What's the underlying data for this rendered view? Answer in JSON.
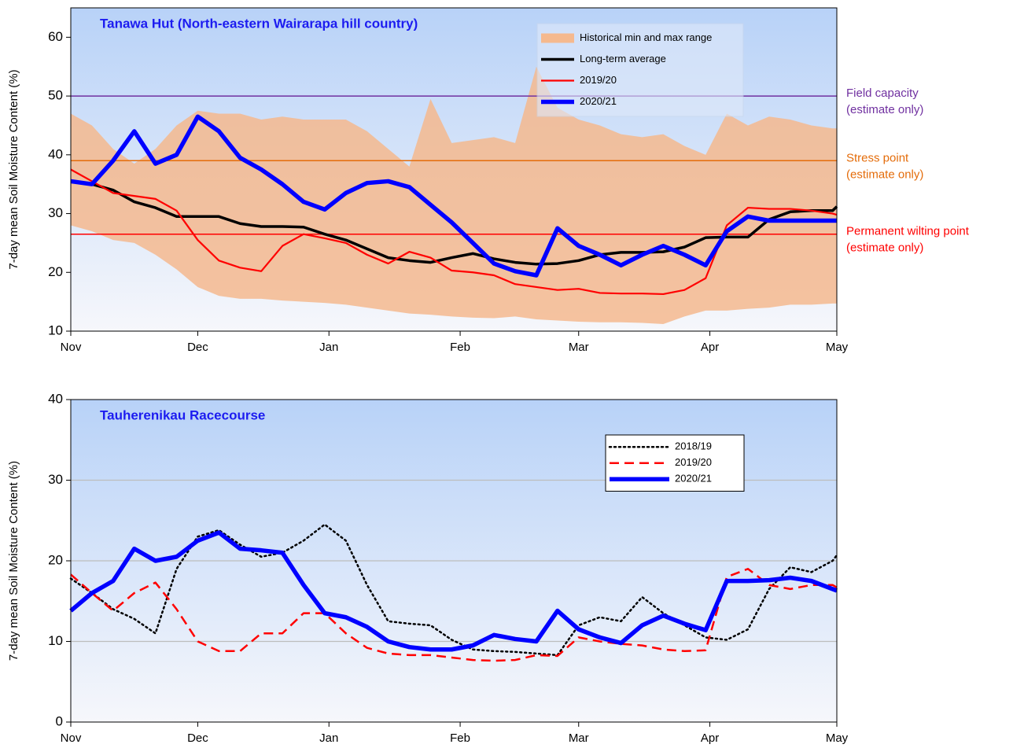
{
  "chart_data": [
    {
      "type": "line",
      "title": "Tanawa Hut (North-eastern Wairarapa hill country)",
      "y_label": "7-day mean Soil Moisture Content (%)",
      "xlim": [
        0,
        181
      ],
      "xticks": [
        {
          "value": 0,
          "label": "Nov"
        },
        {
          "value": 30,
          "label": "Dec"
        },
        {
          "value": 61,
          "label": "Jan"
        },
        {
          "value": 92,
          "label": "Feb"
        },
        {
          "value": 120,
          "label": "Mar"
        },
        {
          "value": 151,
          "label": "Apr"
        },
        {
          "value": 181,
          "label": "May"
        }
      ],
      "ylim": [
        10,
        65
      ],
      "yticks": [
        10,
        20,
        30,
        40,
        50,
        60
      ],
      "grid": false,
      "legend": "upper right",
      "x": [
        0,
        5,
        10,
        15,
        20,
        25,
        30,
        35,
        40,
        45,
        50,
        55,
        60,
        65,
        70,
        75,
        80,
        85,
        90,
        95,
        100,
        105,
        110,
        115,
        120,
        125,
        130,
        135,
        140,
        145,
        150,
        155,
        160,
        165,
        170,
        175,
        180,
        181
      ],
      "series": [
        {
          "name": "Historical min and max range",
          "kind": "band",
          "color": "#f5b98e",
          "max": [
            47,
            45,
            41,
            38.5,
            41,
            45,
            47.5,
            47,
            47,
            46,
            46.5,
            46,
            46,
            46,
            44,
            41,
            38,
            49.5,
            42,
            42.5,
            43,
            42,
            55,
            48,
            46,
            45,
            43.5,
            43,
            43.5,
            41.5,
            40,
            47,
            45,
            46.5,
            46,
            45,
            44.5,
            44.5
          ],
          "min": [
            28,
            27,
            25.5,
            25,
            23,
            20.5,
            17.5,
            16,
            15.5,
            15.5,
            15.2,
            15,
            14.8,
            14.5,
            14,
            13.5,
            13,
            12.8,
            12.5,
            12.3,
            12.2,
            12.5,
            12,
            11.8,
            11.6,
            11.5,
            11.5,
            11.4,
            11.2,
            12.5,
            13.5,
            13.5,
            13.8,
            14,
            14.5,
            14.5,
            14.7,
            14.7
          ]
        },
        {
          "name": "Long-term average",
          "color": "#000000",
          "width": 3.5,
          "dash": "solid",
          "values": [
            35.5,
            35,
            34,
            32,
            31,
            29.5,
            29.5,
            29.5,
            28.3,
            27.8,
            27.8,
            27.7,
            26.5,
            25.5,
            24,
            22.5,
            22,
            21.7,
            22.5,
            23.2,
            22.3,
            21.7,
            21.4,
            21.5,
            22,
            23,
            23.4,
            23.4,
            23.5,
            24.3,
            25.9,
            26,
            26,
            29,
            30.3,
            30.5,
            30.5,
            31.2
          ]
        },
        {
          "name": "2019/20",
          "color": "#ff0000",
          "width": 2.2,
          "dash": "solid",
          "values": [
            37.5,
            35.5,
            33.5,
            33,
            32.5,
            30.5,
            25.5,
            22,
            20.8,
            20.2,
            24.5,
            26.5,
            25.8,
            25,
            23,
            21.5,
            23.5,
            22.5,
            20.3,
            20,
            19.5,
            18,
            17.5,
            17,
            17.2,
            16.5,
            16.4,
            16.4,
            16.3,
            17,
            19,
            28,
            31,
            30.8,
            30.8,
            30.5,
            30,
            29.8
          ]
        },
        {
          "name": "2020/21",
          "color": "#0000ff",
          "width": 5.5,
          "dash": "solid",
          "values": [
            35.5,
            35,
            39,
            44,
            38.5,
            40,
            46.5,
            44,
            39.5,
            37.5,
            35,
            32,
            30.7,
            33.5,
            35.2,
            35.5,
            34.5,
            31.5,
            28.5,
            25,
            21.5,
            20.2,
            19.5,
            27.5,
            24.5,
            23,
            21.2,
            23,
            24.5,
            23,
            21.2,
            27,
            29.5,
            28.8,
            28.8,
            28.8,
            28.8,
            28.8
          ]
        }
      ],
      "ref_lines": [
        {
          "value": 50,
          "label": "Field capacity",
          "sublabel": "(estimate only)",
          "color": "#7030a0"
        },
        {
          "value": 39,
          "label": "Stress point",
          "sublabel": "(estimate only)",
          "color": "#e46c0a"
        },
        {
          "value": 26.5,
          "label": "Permanent wilting point",
          "sublabel": "(estimate only)",
          "color": "#ff0000"
        }
      ]
    },
    {
      "type": "line",
      "title": "Tauherenikau Racecourse",
      "y_label": "7-day mean Soil Moisture Content (%)",
      "xlim": [
        0,
        181
      ],
      "xticks": [
        {
          "value": 0,
          "label": "Nov"
        },
        {
          "value": 30,
          "label": "Dec"
        },
        {
          "value": 61,
          "label": "Jan"
        },
        {
          "value": 92,
          "label": "Feb"
        },
        {
          "value": 120,
          "label": "Mar"
        },
        {
          "value": 151,
          "label": "Apr"
        },
        {
          "value": 181,
          "label": "May"
        }
      ],
      "ylim": [
        0,
        40
      ],
      "yticks": [
        0,
        10,
        20,
        30,
        40
      ],
      "grid": true,
      "legend": "upper right",
      "x": [
        0,
        5,
        10,
        15,
        20,
        25,
        30,
        35,
        40,
        45,
        50,
        55,
        60,
        65,
        70,
        75,
        80,
        85,
        90,
        95,
        100,
        105,
        110,
        115,
        120,
        125,
        130,
        135,
        140,
        145,
        150,
        155,
        160,
        165,
        170,
        175,
        180,
        181
      ],
      "series": [
        {
          "name": "2018/19",
          "color": "#000000",
          "width": 2.5,
          "dash": "dotted",
          "values": [
            17.8,
            16,
            14,
            12.8,
            11,
            19,
            23,
            23.8,
            22,
            20.5,
            21,
            22.5,
            24.5,
            22.5,
            17,
            12.5,
            12.2,
            12,
            10.2,
            9,
            8.8,
            8.7,
            8.5,
            8.3,
            12,
            13,
            12.5,
            15.5,
            13.5,
            12,
            10.5,
            10.2,
            11.5,
            16.5,
            19.2,
            18.6,
            20,
            20.7
          ]
        },
        {
          "name": "2019/20",
          "color": "#ff0000",
          "width": 2.5,
          "dash": "dashed",
          "values": [
            18.3,
            16,
            13.8,
            16,
            17.3,
            14,
            10,
            8.8,
            8.8,
            11,
            11,
            13.5,
            13.5,
            11,
            9.2,
            8.5,
            8.3,
            8.3,
            8,
            7.7,
            7.6,
            7.7,
            8.3,
            8.2,
            10.5,
            10,
            9.7,
            9.5,
            9,
            8.8,
            8.9,
            18,
            19,
            17,
            16.5,
            17,
            17,
            16.7
          ]
        },
        {
          "name": "2020/21",
          "color": "#0000ff",
          "width": 5.5,
          "dash": "solid",
          "values": [
            13.8,
            16,
            17.5,
            21.5,
            20,
            20.5,
            22.5,
            23.5,
            21.5,
            21.3,
            21,
            17,
            13.5,
            13,
            11.8,
            10,
            9.3,
            9,
            9,
            9.5,
            10.8,
            10.3,
            10,
            13.8,
            11.5,
            10.5,
            9.8,
            12,
            13.2,
            12.2,
            11.4,
            17.5,
            17.5,
            17.6,
            17.9,
            17.5,
            16.5,
            16.3
          ]
        }
      ]
    }
  ]
}
